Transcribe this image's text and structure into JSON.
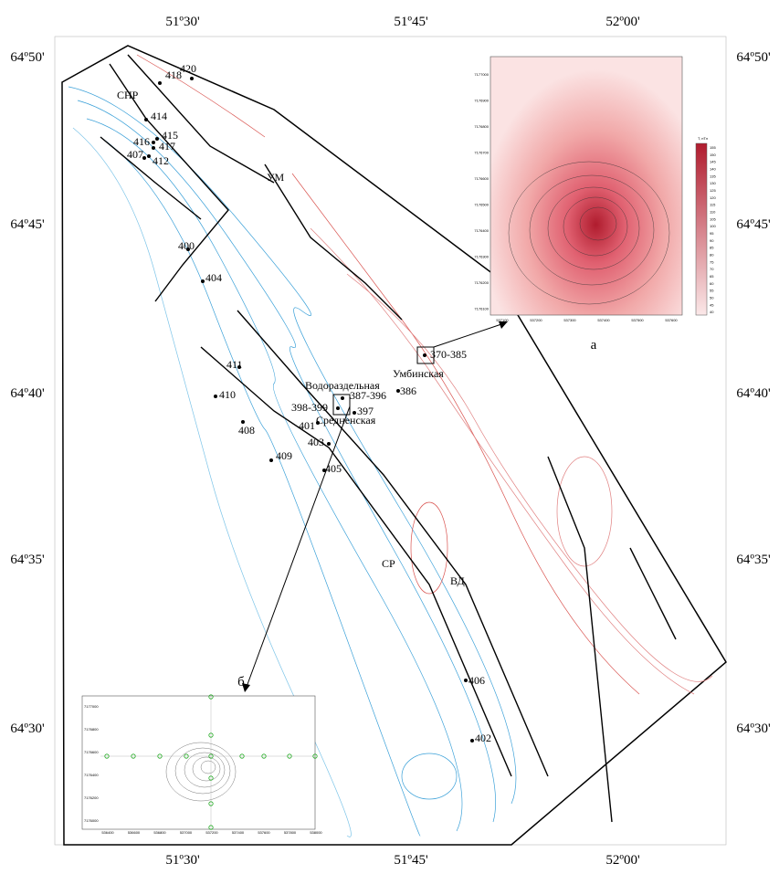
{
  "frame": {
    "lon_labels": [
      "51º30'",
      "51º45'",
      "52º00'"
    ],
    "lat_labels": [
      "64º50'",
      "64º45'",
      "64º40'",
      "64º35'",
      "64º30'"
    ]
  },
  "wells": [
    "418",
    "420",
    "414",
    "415",
    "416",
    "417",
    "407",
    "412",
    "400",
    "404",
    "411",
    "410",
    "408",
    "409",
    "401",
    "403",
    "405",
    "398-399",
    "387-396",
    "397",
    "386",
    "370-385",
    "406",
    "402"
  ],
  "places": [
    "СНР",
    "УМ",
    "Водораздельная",
    "Умбинская",
    "Средненская",
    "СР",
    "ВД"
  ],
  "inset_a": {
    "label": "а",
    "legend_title": "T, нТл",
    "legend_values": [
      "155",
      "150",
      "145",
      "140",
      "135",
      "130",
      "125",
      "120",
      "115",
      "110",
      "105",
      "100",
      "95",
      "90",
      "85",
      "80",
      "75",
      "70",
      "65",
      "60",
      "55",
      "50",
      "45",
      "40"
    ],
    "yticks": [
      "7177000",
      "7176900",
      "7176800",
      "7176700",
      "7176600",
      "7176500",
      "7176400",
      "7176300",
      "7176200",
      "7176100"
    ],
    "xticks": [
      "537100",
      "537200",
      "537300",
      "537400",
      "537500",
      "537600"
    ]
  },
  "inset_b": {
    "label": "б",
    "yticks": [
      "7177000",
      "7176800",
      "7176600",
      "7176400",
      "7176200",
      "7176000"
    ],
    "xticks": [
      "536400",
      "536600",
      "536800",
      "537000",
      "537200",
      "537400",
      "537600",
      "537800",
      "538000"
    ]
  }
}
